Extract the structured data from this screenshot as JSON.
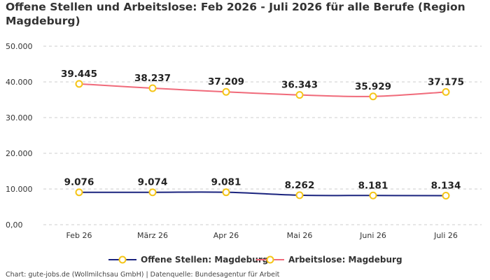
{
  "chart_data": {
    "type": "line",
    "title": "Offene Stellen und Arbeitslose: Feb 2026 - Juli 2026 für alle Berufe (Region Magdeburg)",
    "categories": [
      "Feb 26",
      "März 26",
      "Apr 26",
      "Mai 26",
      "Juni 26",
      "Juli 26"
    ],
    "ylim": [
      0,
      50000
    ],
    "yticks": [
      {
        "value": 0,
        "label": "0,00"
      },
      {
        "value": 10000,
        "label": "10.000"
      },
      {
        "value": 20000,
        "label": "20.000"
      },
      {
        "value": 30000,
        "label": "30.000"
      },
      {
        "value": 40000,
        "label": "40.000"
      },
      {
        "value": 50000,
        "label": "50.000"
      }
    ],
    "grid": true,
    "legend_position": "bottom",
    "series": [
      {
        "name": "Offene Stellen: Magdeburg",
        "color": "#1a237e",
        "values": [
          9076,
          9074,
          9081,
          8262,
          8181,
          8134
        ],
        "labels": [
          "9.076",
          "9.074",
          "9.081",
          "8.262",
          "8.181",
          "8.134"
        ]
      },
      {
        "name": "Arbeitslose: Magdeburg",
        "color": "#f06a7a",
        "values": [
          39445,
          38237,
          37209,
          36343,
          35929,
          37175
        ],
        "labels": [
          "39.445",
          "38.237",
          "37.209",
          "36.343",
          "35.929",
          "37.175"
        ]
      }
    ],
    "marker_color": "#f5c518"
  },
  "source": "Chart: gute-jobs.de (Wollmilchsau GmbH) | Datenquelle: Bundesagentur für Arbeit"
}
